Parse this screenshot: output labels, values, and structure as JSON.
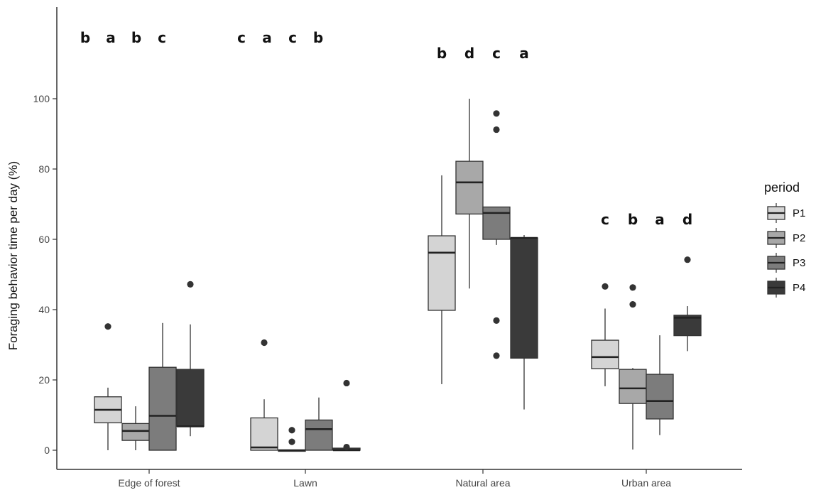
{
  "chart_data": {
    "type": "boxplot",
    "ylabel": "Foraging behavior time per day (%)",
    "xlabel": "",
    "ylim": [
      -4,
      126
    ],
    "y_ticks": [
      0,
      20,
      40,
      60,
      80,
      100
    ],
    "categories": [
      "Edge of forest",
      "Lawn",
      "Natural area",
      "Urban area"
    ],
    "legend": {
      "title": "period",
      "position": "right"
    },
    "series": [
      {
        "name": "P1",
        "color": "#d4d4d4"
      },
      {
        "name": "P2",
        "color": "#a8a8a8"
      },
      {
        "name": "P3",
        "color": "#7c7c7c"
      },
      {
        "name": "P4",
        "color": "#3a3a3a"
      }
    ],
    "boxes": [
      {
        "category": "Edge of forest",
        "series": "P1",
        "q1": 7.8,
        "median": 11.5,
        "q3": 15.2,
        "whisker_low": 0,
        "whisker_high": 17.8,
        "outliers": [
          35.2
        ]
      },
      {
        "category": "Edge of forest",
        "series": "P2",
        "q1": 2.8,
        "median": 5.5,
        "q3": 7.6,
        "whisker_low": 0,
        "whisker_high": 12.5,
        "outliers": []
      },
      {
        "category": "Edge of forest",
        "series": "P3",
        "q1": 0,
        "median": 9.8,
        "q3": 23.6,
        "whisker_low": 0,
        "whisker_high": 36.2,
        "outliers": []
      },
      {
        "category": "Edge of forest",
        "series": "P4",
        "q1": 6.8,
        "median": 6.8,
        "q3": 23.0,
        "whisker_low": 4.0,
        "whisker_high": 35.8,
        "outliers": [
          47.2
        ]
      },
      {
        "category": "Lawn",
        "series": "P1",
        "q1": 0,
        "median": 0.8,
        "q3": 9.2,
        "whisker_low": 0,
        "whisker_high": 14.5,
        "outliers": [
          30.6
        ]
      },
      {
        "category": "Lawn",
        "series": "P2",
        "q1": 0,
        "median": 0,
        "q3": 0,
        "whisker_low": 0,
        "whisker_high": 0,
        "outliers": [
          2.4,
          5.7
        ]
      },
      {
        "category": "Lawn",
        "series": "P3",
        "q1": 0,
        "median": 6.0,
        "q3": 8.6,
        "whisker_low": 0,
        "whisker_high": 15.0,
        "outliers": []
      },
      {
        "category": "Lawn",
        "series": "P4",
        "q1": 0,
        "median": 0,
        "q3": 0.6,
        "whisker_low": 0,
        "whisker_high": 0.6,
        "outliers": [
          0.9,
          19.1
        ]
      },
      {
        "category": "Natural area",
        "series": "P1",
        "q1": 39.8,
        "median": 56.2,
        "q3": 61.0,
        "whisker_low": 18.8,
        "whisker_high": 78.2,
        "outliers": []
      },
      {
        "category": "Natural area",
        "series": "P2",
        "q1": 67.2,
        "median": 76.2,
        "q3": 82.2,
        "whisker_low": 46.0,
        "whisker_high": 100,
        "outliers": []
      },
      {
        "category": "Natural area",
        "series": "P3",
        "q1": 60.0,
        "median": 67.5,
        "q3": 69.2,
        "whisker_low": 58.4,
        "whisker_high": 69.2,
        "outliers": [
          26.9,
          36.9,
          91.2,
          95.8
        ]
      },
      {
        "category": "Natural area",
        "series": "P4",
        "q1": 26.2,
        "median": 60.4,
        "q3": 60.4,
        "whisker_low": 11.6,
        "whisker_high": 61.2,
        "outliers": []
      },
      {
        "category": "Urban area",
        "series": "P1",
        "q1": 23.2,
        "median": 26.5,
        "q3": 31.3,
        "whisker_low": 18.2,
        "whisker_high": 40.3,
        "outliers": [
          46.6
        ]
      },
      {
        "category": "Urban area",
        "series": "P2",
        "q1": 13.3,
        "median": 17.6,
        "q3": 23.0,
        "whisker_low": 0.2,
        "whisker_high": 23.4,
        "outliers": [
          41.5,
          46.3
        ]
      },
      {
        "category": "Urban area",
        "series": "P3",
        "q1": 8.9,
        "median": 14.0,
        "q3": 21.6,
        "whisker_low": 4.3,
        "whisker_high": 32.7,
        "outliers": []
      },
      {
        "category": "Urban area",
        "series": "P4",
        "q1": 32.6,
        "median": 37.7,
        "q3": 38.4,
        "whisker_low": 28.2,
        "whisker_high": 41.0,
        "outliers": [
          54.2
        ]
      }
    ],
    "annotations": [
      {
        "category": "Edge of forest",
        "letters": [
          "b",
          "a",
          "b",
          "c"
        ],
        "level": "top"
      },
      {
        "category": "Lawn",
        "letters": [
          "c",
          "a",
          "c",
          "b"
        ],
        "level": "top"
      },
      {
        "category": "Natural area",
        "letters": [
          "b",
          "d",
          "c",
          "a"
        ],
        "level": "upper"
      },
      {
        "category": "Urban area",
        "letters": [
          "c",
          "b",
          "a",
          "d"
        ],
        "level": "middle"
      }
    ]
  }
}
